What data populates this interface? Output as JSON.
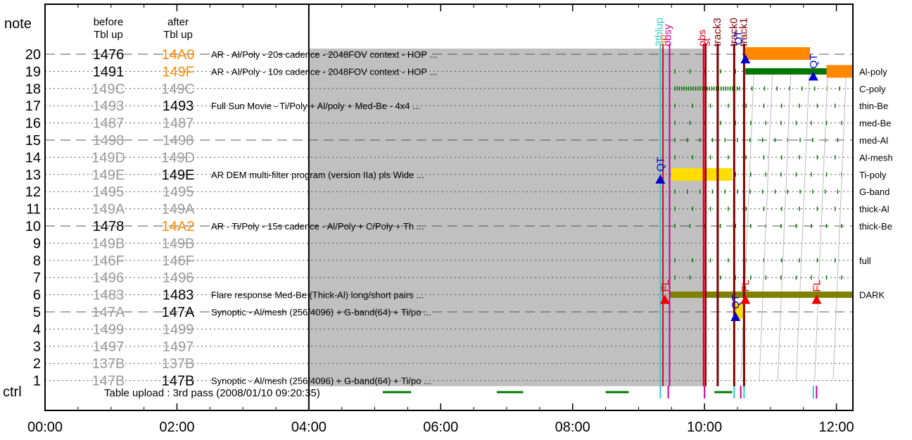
{
  "chart_data": {
    "type": "timeline",
    "y_axis_label": "note",
    "ctrl_label": "ctrl",
    "x_ticks": [
      "00:00",
      "02:00",
      "04:00",
      "06:00",
      "08:00",
      "10:00",
      "12:00"
    ],
    "x_range_hours": [
      0,
      12.25
    ],
    "col_before_header": [
      "before",
      "Tbl up"
    ],
    "col_after_header": [
      "after",
      "Tbl up"
    ],
    "shaded_region_hours": [
      4.0,
      10.0
    ],
    "colors": {
      "gray_id": "#999999",
      "black_id": "#000000",
      "orange_id": "#ff8800",
      "shade": "#c0c0c0",
      "orange_bar": "#ff8800",
      "green_bar": "#007700",
      "olive_bar": "#808000",
      "yellow_bar": "#ffdd00",
      "dark_red": "#800000",
      "crimson": "#dd0022",
      "cyan": "#33cccc",
      "magenta": "#cc0099",
      "blue": "#0000cc",
      "red": "#ee0000"
    },
    "rows": [
      {
        "n": 20,
        "before": "1476",
        "after": "14A0",
        "before_c": "black",
        "after_c": "orange",
        "desc": "AR - Al/Poly - 20s cadence - 2048FOV context - HOP ...",
        "style": "dash",
        "filter": ""
      },
      {
        "n": 19,
        "before": "1491",
        "after": "149F",
        "before_c": "black",
        "after_c": "orange",
        "desc": "AR - Al/Poly - 10s cadence - 2048FOV context - HOP ...",
        "style": "dot",
        "filter": "Al-poly"
      },
      {
        "n": 18,
        "before": "149C",
        "after": "149C",
        "before_c": "gray",
        "after_c": "gray",
        "desc": "",
        "style": "dot",
        "filter": "C-poly"
      },
      {
        "n": 17,
        "before": "1493",
        "after": "1493",
        "before_c": "gray",
        "after_c": "black",
        "desc": "Full Sun Movie - Ti/Poly + Al/poly + Med-Be - 4x4 ...",
        "style": "dot",
        "filter": "thin-Be"
      },
      {
        "n": 16,
        "before": "1487",
        "after": "1487",
        "before_c": "gray",
        "after_c": "gray",
        "desc": "",
        "style": "dot",
        "filter": "med-Be"
      },
      {
        "n": 15,
        "before": "1498",
        "after": "1498",
        "before_c": "gray",
        "after_c": "gray",
        "desc": "",
        "style": "dash",
        "filter": "med-Al"
      },
      {
        "n": 14,
        "before": "149D",
        "after": "149D",
        "before_c": "gray",
        "after_c": "gray",
        "desc": "",
        "style": "dot",
        "filter": "Al-mesh"
      },
      {
        "n": 13,
        "before": "149E",
        "after": "149E",
        "before_c": "gray",
        "after_c": "black",
        "desc": "AR DEM multi-filter program (version IIa) pls Wide ...",
        "style": "dot",
        "filter": "Ti-poly"
      },
      {
        "n": 12,
        "before": "1495",
        "after": "1495",
        "before_c": "gray",
        "after_c": "gray",
        "desc": "",
        "style": "dot",
        "filter": "G-band"
      },
      {
        "n": 11,
        "before": "149A",
        "after": "149A",
        "before_c": "gray",
        "after_c": "gray",
        "desc": "",
        "style": "dot",
        "filter": "thick-Al"
      },
      {
        "n": 10,
        "before": "1478",
        "after": "14A2",
        "before_c": "black",
        "after_c": "orange",
        "desc": "AR - Ti/Poly - 15s cadence - Al/Poly + C/Poly + Th ...",
        "style": "dash",
        "filter": "thick-Be"
      },
      {
        "n": 9,
        "before": "149B",
        "after": "149B",
        "before_c": "gray",
        "after_c": "gray",
        "desc": "",
        "style": "dot",
        "filter": ""
      },
      {
        "n": 8,
        "before": "146F",
        "after": "146F",
        "before_c": "gray",
        "after_c": "gray",
        "desc": "",
        "style": "dot",
        "filter": "full"
      },
      {
        "n": 7,
        "before": "1496",
        "after": "1496",
        "before_c": "gray",
        "after_c": "gray",
        "desc": "",
        "style": "dot",
        "filter": ""
      },
      {
        "n": 6,
        "before": "1483",
        "after": "1483",
        "before_c": "gray",
        "after_c": "black",
        "desc": "Flare response Med-Be (Thick-Al) long/short pairs ...",
        "style": "dot",
        "filter": "DARK"
      },
      {
        "n": 5,
        "before": "147A",
        "after": "147A",
        "before_c": "gray",
        "after_c": "black",
        "desc": "Synoptic - Al/mesh (256/4096) + G-band(64) + Ti/po ...",
        "style": "dash",
        "filter": ""
      },
      {
        "n": 4,
        "before": "1499",
        "after": "1499",
        "before_c": "gray",
        "after_c": "gray",
        "desc": "",
        "style": "dot",
        "filter": ""
      },
      {
        "n": 3,
        "before": "1497",
        "after": "1497",
        "before_c": "gray",
        "after_c": "gray",
        "desc": "",
        "style": "dot",
        "filter": ""
      },
      {
        "n": 2,
        "before": "137B",
        "after": "137B",
        "before_c": "gray",
        "after_c": "gray",
        "desc": "",
        "style": "dot",
        "filter": ""
      },
      {
        "n": 1,
        "before": "147B",
        "after": "147B",
        "before_c": "gray",
        "after_c": "black",
        "desc": "Synoptic - Al/mesh (256/4096) + G-band(64) + Ti/po ...",
        "style": "dot",
        "filter": ""
      }
    ],
    "ctrl_text": "Table upload : 3rd pass (2008/01/10 09:20:35)",
    "ctrl_green_segments_hours": [
      [
        5.12,
        5.55
      ],
      [
        6.85,
        7.25
      ],
      [
        8.5,
        8.85
      ],
      [
        10.15,
        10.42
      ]
    ],
    "ctrl_ticks": [
      {
        "t": 9.33,
        "c": "cyan"
      },
      {
        "t": 9.45,
        "c": "magenta"
      },
      {
        "t": 10.0,
        "c": "magenta"
      },
      {
        "t": 10.45,
        "c": "cyan"
      },
      {
        "t": 10.55,
        "c": "magenta"
      },
      {
        "t": 10.6,
        "c": "cyan"
      },
      {
        "t": 11.65,
        "c": "cyan"
      },
      {
        "t": 11.7,
        "c": "magenta"
      }
    ],
    "vertical_markers": [
      {
        "t": 9.33,
        "c": "cyan",
        "w": 2
      },
      {
        "t": 9.37,
        "c": "crimson",
        "w": 2
      },
      {
        "t": 9.47,
        "c": "magenta",
        "w": 2
      },
      {
        "t": 9.99,
        "c": "crimson",
        "w": 3
      },
      {
        "t": 10.02,
        "c": "dark_red",
        "w": 2
      },
      {
        "t": 10.2,
        "c": "dark_red",
        "w": 3
      },
      {
        "t": 10.45,
        "c": "dark_red",
        "w": 3
      },
      {
        "t": 10.6,
        "c": "dark_red",
        "w": 3
      }
    ],
    "top_labels": [
      {
        "t": 9.3,
        "text": "3tblup",
        "c": "cyan"
      },
      {
        "t": 9.36,
        "text": "up",
        "c": "orange"
      },
      {
        "t": 9.43,
        "text": "obsy",
        "c": "magenta"
      },
      {
        "t": 9.95,
        "text": "obs",
        "c": "crimson"
      },
      {
        "t": 10.02,
        "text": "st",
        "c": "crimson"
      },
      {
        "t": 10.18,
        "text": "track3",
        "c": "dark_red"
      },
      {
        "t": 10.43,
        "text": "track0",
        "c": "dark_red"
      },
      {
        "t": 10.58,
        "text": "track1",
        "c": "dark_red"
      },
      {
        "t": 10.5,
        "text": "QT",
        "c": "blue"
      }
    ],
    "bars": [
      {
        "row": 20,
        "start": 10.62,
        "end": 11.6,
        "c": "orange_bar"
      },
      {
        "row": 19,
        "start": 10.62,
        "end": 12.25,
        "c": "green_bar"
      },
      {
        "row": 19.5,
        "start": 11.85,
        "end": 12.25,
        "c": "orange_bar"
      },
      {
        "row": 13,
        "start": 9.5,
        "end": 10.42,
        "c": "yellow_bar"
      },
      {
        "row": 6,
        "start": 9.47,
        "end": 12.25,
        "c": "olive_bar"
      },
      {
        "row": 5,
        "start": 10.47,
        "end": 10.6,
        "c": "yellow_bar"
      }
    ],
    "event_markers": [
      {
        "t": 9.4,
        "row": 6,
        "shape": "triangle",
        "c": "red",
        "label": "FL"
      },
      {
        "t": 10.62,
        "row": 6,
        "shape": "triangle",
        "c": "red",
        "label": "FL"
      },
      {
        "t": 11.7,
        "row": 6,
        "shape": "triangle",
        "c": "red",
        "label": "FL"
      },
      {
        "t": 9.33,
        "row": 13,
        "shape": "triangle",
        "c": "blue",
        "label": "QT"
      },
      {
        "t": 10.47,
        "row": 5,
        "shape": "triangle",
        "c": "blue",
        "label": "QT"
      },
      {
        "t": 10.62,
        "row": 20,
        "shape": "triangle",
        "c": "blue",
        "label": ""
      },
      {
        "t": 11.65,
        "row": 19,
        "shape": "triangle",
        "c": "blue",
        "label": "QT"
      }
    ]
  }
}
